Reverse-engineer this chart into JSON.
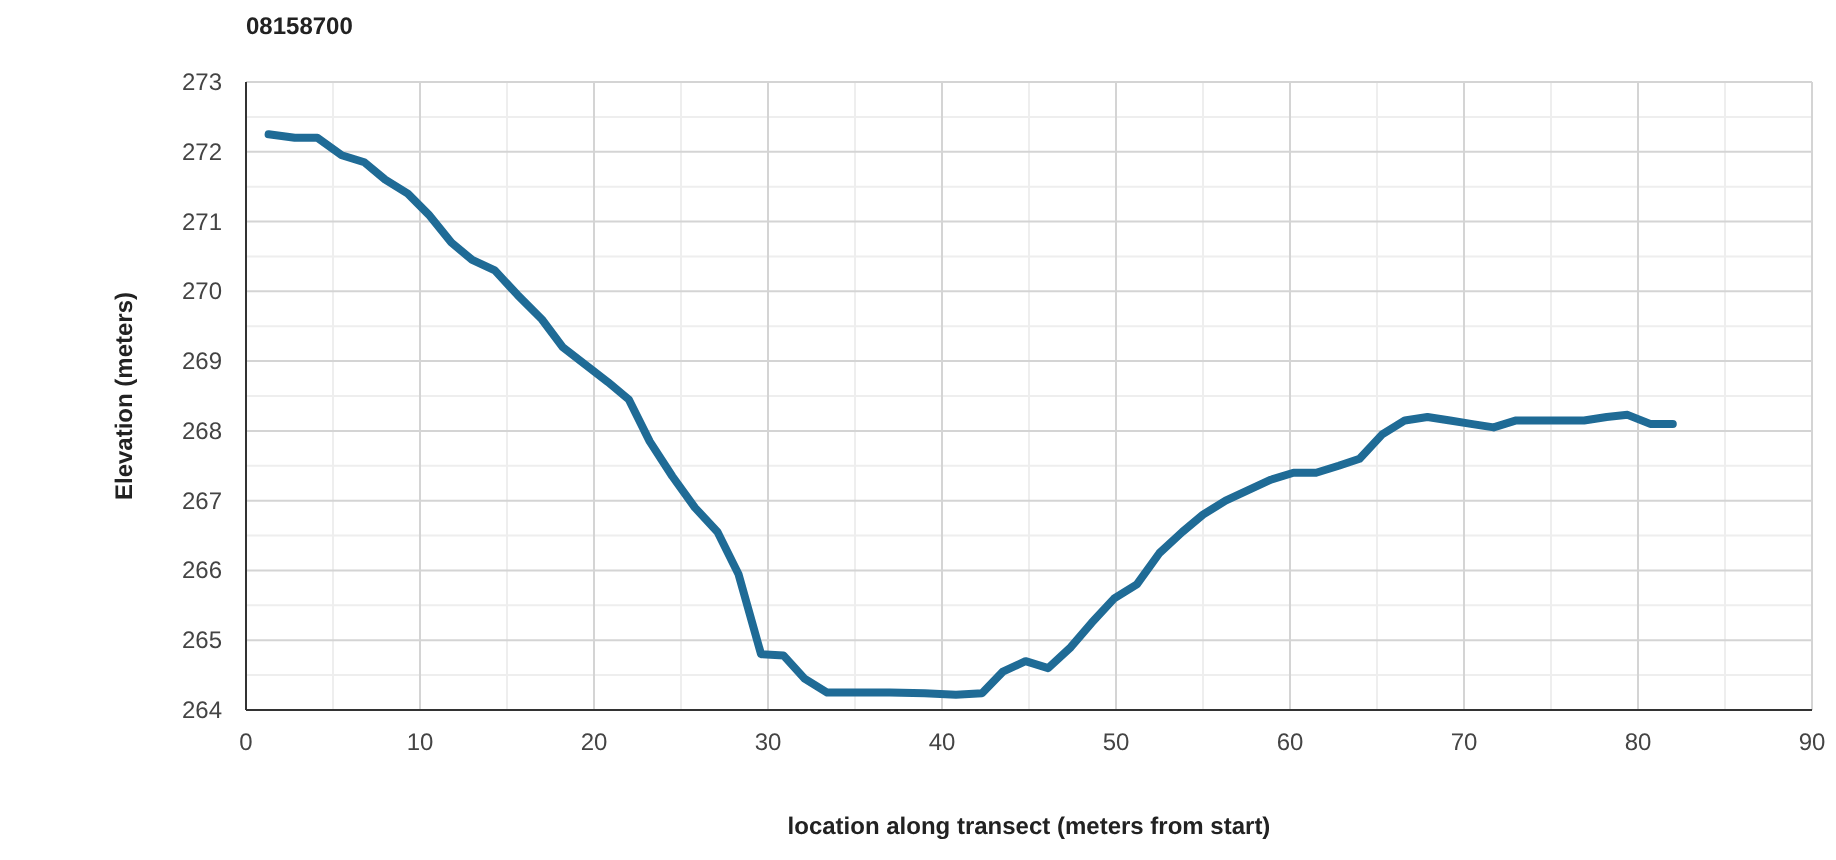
{
  "chart_data": {
    "type": "line",
    "title": "08158700",
    "xlabel": "location along transect (meters from start)",
    "ylabel": "Elevation (meters)",
    "xlim": [
      0,
      90
    ],
    "xticks": [
      0,
      10,
      20,
      30,
      40,
      50,
      60,
      70,
      80,
      90
    ],
    "ylim": [
      264,
      273
    ],
    "yticks": [
      264,
      265,
      266,
      267,
      268,
      269,
      270,
      271,
      272,
      273
    ],
    "grid": true,
    "marker": "none",
    "line_style": "solid",
    "series": [
      {
        "color": "#1f6b96",
        "x": [
          1.3,
          2.8,
          4.1,
          5.5,
          6.8,
          8,
          9.3,
          10.5,
          11.8,
          13,
          14.3,
          15.6,
          17,
          18.2,
          19.5,
          20.8,
          22,
          23.2,
          24.5,
          25.8,
          27.1,
          28.3,
          29.6,
          30.9,
          32.1,
          33.4,
          35,
          37,
          39,
          40.8,
          42.3,
          43.5,
          44.8,
          46.1,
          47.4,
          48.6,
          49.9,
          51.2,
          52.5,
          53.8,
          55,
          56.3,
          57.6,
          58.9,
          60.2,
          61.5,
          62.8,
          64,
          65.3,
          66.6,
          67.9,
          69.2,
          70.4,
          71.7,
          73,
          74.3,
          75.6,
          76.9,
          78.2,
          79.4,
          80.7,
          82
        ],
        "values": [
          272.25,
          272.2,
          272.2,
          271.95,
          271.85,
          271.6,
          271.4,
          271.1,
          270.7,
          270.45,
          270.3,
          269.95,
          269.6,
          269.2,
          268.95,
          268.7,
          268.45,
          267.85,
          267.35,
          266.9,
          266.55,
          265.95,
          264.8,
          264.78,
          264.45,
          264.25,
          264.25,
          264.25,
          264.24,
          264.22,
          264.24,
          264.55,
          264.7,
          264.6,
          264.9,
          265.25,
          265.6,
          265.8,
          266.25,
          266.55,
          266.8,
          267,
          267.15,
          267.3,
          267.4,
          267.4,
          267.5,
          267.6,
          267.95,
          268.15,
          268.2,
          268.15,
          268.1,
          268.05,
          268.15,
          268.15,
          268.15,
          268.15,
          268.2,
          268.23,
          268.1,
          268.1
        ]
      }
    ]
  }
}
